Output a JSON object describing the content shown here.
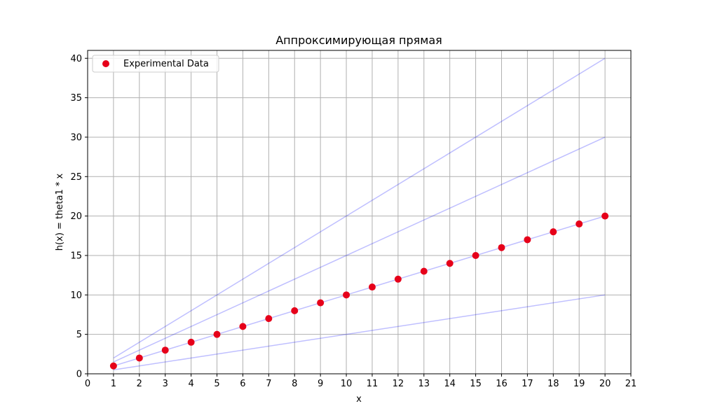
{
  "chart_data": {
    "type": "scatter",
    "title": "Аппроксимирующая прямая",
    "xlabel": "x",
    "ylabel": "h(x) = theta1 * x",
    "xlim": [
      0,
      21
    ],
    "ylim": [
      0,
      41
    ],
    "grid": true,
    "x_ticks": [
      0,
      1,
      2,
      3,
      4,
      5,
      6,
      7,
      8,
      9,
      10,
      11,
      12,
      13,
      14,
      15,
      16,
      17,
      18,
      19,
      20,
      21
    ],
    "y_ticks": [
      0,
      5,
      10,
      15,
      20,
      25,
      30,
      35,
      40
    ],
    "legend": {
      "placement": "top-left",
      "entries": [
        "Experimental Data"
      ]
    },
    "scatter": {
      "name": "Experimental Data",
      "color": "#e6001a",
      "x": [
        1,
        2,
        3,
        4,
        5,
        6,
        7,
        8,
        9,
        10,
        11,
        12,
        13,
        14,
        15,
        16,
        17,
        18,
        19,
        20
      ],
      "y": [
        1,
        2,
        3,
        4,
        5,
        6,
        7,
        8,
        9,
        10,
        11,
        12,
        13,
        14,
        15,
        16,
        17,
        18,
        19,
        20
      ]
    },
    "lines": {
      "color": "#0000ff",
      "opacity": 0.25,
      "x": [
        1,
        20
      ],
      "slopes": [
        0.5,
        1.0,
        1.5,
        2.0
      ]
    }
  }
}
